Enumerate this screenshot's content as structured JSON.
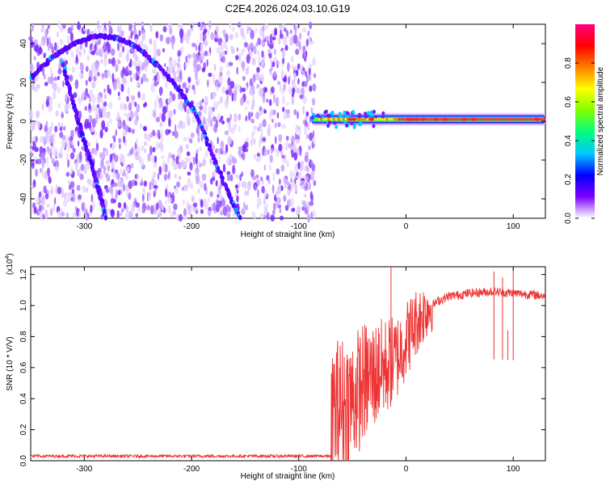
{
  "title": "C2E4.2026.024.03.10.G19",
  "chart_data": [
    {
      "type": "heatmap",
      "xlabel": "Height of straight line (km)",
      "ylabel": "Frequency (Hz)",
      "xlim": [
        -350,
        130
      ],
      "ylim": [
        -50,
        50
      ],
      "xticks": [
        -300,
        -200,
        -100,
        0,
        100
      ],
      "yticks": [
        -40,
        -20,
        0,
        20,
        40
      ],
      "xtick_labels": [
        "-300",
        "-200",
        "-100",
        "0",
        "100"
      ],
      "ytick_labels": [
        "-40",
        "-20",
        "0",
        "20",
        "40"
      ],
      "noise_region_x": [
        -350,
        -85
      ],
      "signal_region_x": [
        -88,
        130
      ],
      "signal_frequency_hz": 1,
      "traces": [
        {
          "points": [
            [
              -350,
              22
            ],
            [
              -330,
              33
            ],
            [
              -310,
              40
            ],
            [
              -290,
              44
            ],
            [
              -270,
              43
            ],
            [
              -250,
              38
            ],
            [
              -230,
              28
            ],
            [
              -210,
              15
            ],
            [
              -195,
              3
            ],
            [
              -180,
              -18
            ],
            [
              -165,
              -38
            ],
            [
              -155,
              -50
            ]
          ]
        },
        {
          "points": [
            [
              -320,
              30
            ],
            [
              -310,
              8
            ],
            [
              -300,
              -10
            ],
            [
              -292,
              -25
            ],
            [
              -285,
              -38
            ],
            [
              -280,
              -50
            ]
          ]
        }
      ],
      "colorbar": {
        "label": "Normalized spectral amplitude",
        "range": [
          0,
          1
        ],
        "ticks": [
          0.0,
          0.2,
          0.4,
          0.6,
          0.8
        ],
        "tick_labels": [
          "0.0",
          "0.2",
          "0.4",
          "0.6",
          "0.8"
        ],
        "colors": [
          "#ffffff",
          "#7d00ff",
          "#0000ff",
          "#00c8ff",
          "#00ff7f",
          "#7fff00",
          "#ffff00",
          "#ff7f00",
          "#ff0000",
          "#ff0080"
        ]
      },
      "grid": false
    },
    {
      "type": "line",
      "xlabel": "Height of straight line (km)",
      "ylabel": "SNR (10 * V/V)",
      "y_multiplier_label": "(x10",
      "y_multiplier_exponent": "4",
      "y_multiplier_close": ")",
      "xlim": [
        -350,
        130
      ],
      "ylim": [
        0,
        1.25
      ],
      "xticks": [
        -300,
        -200,
        -100,
        0,
        100
      ],
      "yticks": [
        0.0,
        0.2,
        0.4,
        0.6,
        0.8,
        1.0,
        1.2
      ],
      "xtick_labels": [
        "-300",
        "-200",
        "-100",
        "0",
        "100"
      ],
      "ytick_labels": [
        "0.0",
        "0.2",
        "0.4",
        "0.6",
        "0.8",
        "1.0",
        "1.2"
      ],
      "series": [
        {
          "color": "#ee3333",
          "envelope": [
            [
              -350,
              0.03
            ],
            [
              -200,
              0.03
            ],
            [
              -100,
              0.03
            ],
            [
              -70,
              0.03
            ],
            [
              -68,
              0.3
            ],
            [
              -60,
              0.35
            ],
            [
              -50,
              0.4
            ],
            [
              -40,
              0.5
            ],
            [
              -30,
              0.55
            ],
            [
              -20,
              0.6
            ],
            [
              -10,
              0.65
            ],
            [
              0,
              0.78
            ],
            [
              10,
              0.9
            ],
            [
              20,
              0.98
            ],
            [
              30,
              1.03
            ],
            [
              40,
              1.06
            ],
            [
              60,
              1.08
            ],
            [
              80,
              1.09
            ],
            [
              100,
              1.08
            ],
            [
              120,
              1.07
            ],
            [
              130,
              1.06
            ]
          ],
          "spikes": [
            [
              -14,
              1.26
            ],
            [
              -25,
              0.82
            ],
            [
              -45,
              0.55
            ],
            [
              -62,
              0.6
            ],
            [
              82,
              1.22
            ],
            [
              95,
              0.84
            ],
            [
              100,
              1.25
            ],
            [
              90,
              1.18
            ]
          ]
        }
      ],
      "grid": false
    }
  ]
}
